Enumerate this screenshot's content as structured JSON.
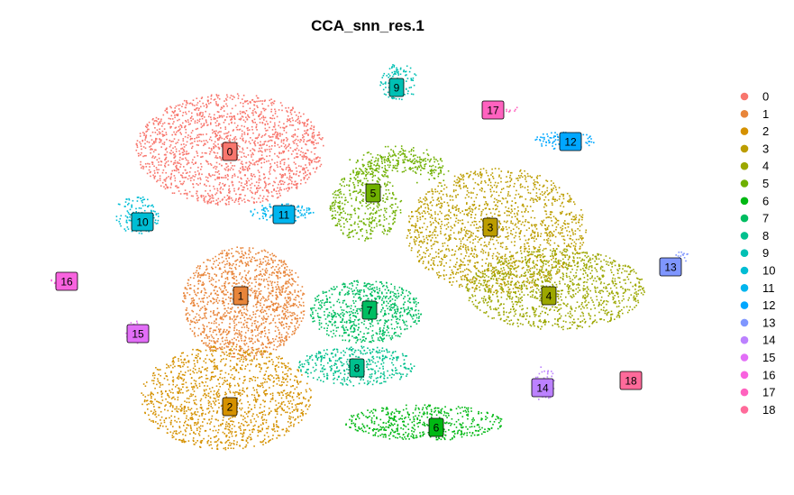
{
  "chart_data": {
    "type": "scatter",
    "title": "CCA_snn_res.1",
    "xlabel": "",
    "ylabel": "",
    "legend_position": "right",
    "clusters": [
      {
        "id": "0",
        "color": "#F8766D",
        "center": [
          255,
          168
        ],
        "spread": [
          95,
          62
        ],
        "n": 1700
      },
      {
        "id": "1",
        "color": "#E68613",
        "center": [
          265,
          330
        ],
        "spread": [
          70,
          65
        ],
        "n": 1300
      },
      {
        "id": "2",
        "color": "#CD9600",
        "center": [
          245,
          445
        ],
        "spread": [
          85,
          55
        ],
        "n": 1300
      },
      {
        "id": "3",
        "color": "#ABA300",
        "center": [
          545,
          255
        ],
        "spread": [
          95,
          70
        ],
        "n": 1600
      },
      {
        "id": "4",
        "color": "#7CAE00",
        "center": [
          605,
          320
        ],
        "spread": [
          100,
          45
        ],
        "n": 1100
      },
      {
        "id": "5",
        "color": "#0CB702",
        "center": [
          415,
          215
        ],
        "spread": [
          55,
          45
        ],
        "n": 700
      },
      {
        "id": "6",
        "color": "#00BE67",
        "center": [
          480,
          468
        ],
        "spread": [
          90,
          22
        ],
        "n": 500
      },
      {
        "id": "7",
        "color": "#00C19A",
        "center": [
          405,
          350
        ],
        "spread": [
          60,
          45
        ],
        "n": 700
      },
      {
        "id": "8",
        "color": "#00BFC4",
        "center": [
          395,
          405
        ],
        "spread": [
          60,
          25
        ],
        "n": 400
      },
      {
        "id": "9",
        "color": "#00B8E7",
        "center": [
          442,
          92
        ],
        "spread": [
          20,
          16
        ],
        "n": 110
      },
      {
        "id": "10",
        "color": "#00A9FF",
        "center": [
          155,
          238
        ],
        "spread": [
          22,
          18
        ],
        "n": 130
      },
      {
        "id": "11",
        "color": "#8494FF",
        "center": [
          315,
          235
        ],
        "spread": [
          28,
          12
        ],
        "n": 110
      },
      {
        "id": "12",
        "color": "#C77CFF",
        "center": [
          625,
          155
        ],
        "spread": [
          30,
          10
        ],
        "n": 110
      },
      {
        "id": "13",
        "color": "#ED68ED",
        "center": [
          745,
          295
        ],
        "spread": [
          18,
          8
        ],
        "n": 40
      },
      {
        "id": "14",
        "color": "#FF61CC",
        "center": [
          603,
          428
        ],
        "spread": [
          12,
          12
        ],
        "n": 40
      },
      {
        "id": "15",
        "color": "#FF68A1",
        "center": [
          150,
          370
        ],
        "spread": [
          10,
          10
        ],
        "n": 25
      },
      {
        "id": "16",
        "color": "#F8766D",
        "center": [
          62,
          312
        ],
        "spread": [
          4,
          4
        ],
        "n": 8
      },
      {
        "id": "17",
        "color": "#E68613",
        "center": [
          550,
          120
        ],
        "spread": [
          12,
          4
        ],
        "n": 12
      },
      {
        "id": "18",
        "color": "#CD9600",
        "center": [
          700,
          422
        ],
        "spread": [
          1,
          1
        ],
        "n": 0
      }
    ]
  },
  "legend": {
    "items": [
      "0",
      "1",
      "2",
      "3",
      "4",
      "5",
      "6",
      "7",
      "8",
      "9",
      "10",
      "11",
      "12",
      "13",
      "14",
      "15",
      "16",
      "17",
      "18"
    ]
  }
}
